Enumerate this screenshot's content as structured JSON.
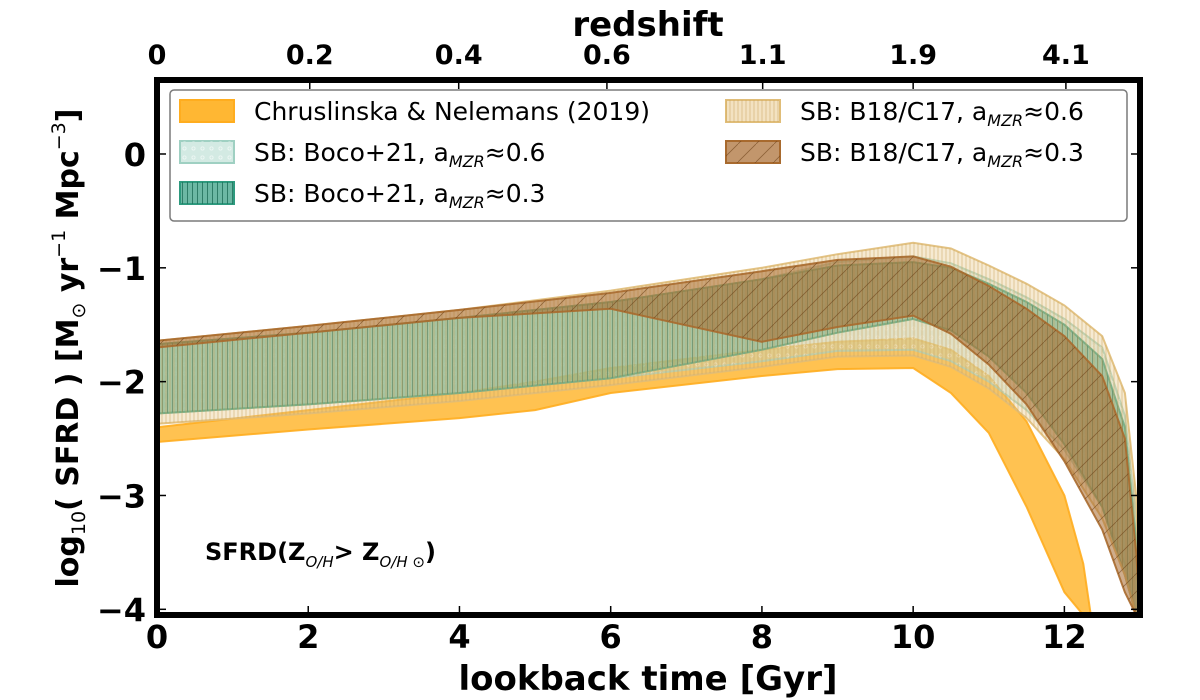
{
  "chart_data": {
    "type": "area",
    "title": "redshift",
    "xlabel": "lookback time [Gyr]",
    "ylabel": {
      "prefix": "log",
      "sub10": "10",
      "body": "( SFRD ) [M",
      "sun": "⊙",
      "yr": " yr",
      "sup1": "−1",
      "mpc": " Mpc",
      "sup3": "−3",
      "close": "]"
    },
    "xlim": [
      0,
      13
    ],
    "ylim": [
      -4.05,
      0.65
    ],
    "x_ticks": [
      0,
      2,
      4,
      6,
      8,
      10,
      12
    ],
    "x_tick_labels": [
      "0",
      "2",
      "4",
      "6",
      "8",
      "10",
      "12"
    ],
    "y_ticks": [
      0,
      -1,
      -2,
      -3,
      -4
    ],
    "y_tick_labels": [
      "0",
      "−1",
      "−2",
      "−3",
      "−4"
    ],
    "top_axis": {
      "label": "redshift",
      "ticks": [
        0,
        2.02,
        3.99,
        5.95,
        8.01,
        10.0,
        12.02
      ],
      "tick_labels": [
        "0",
        "0.2",
        "0.4",
        "0.6",
        "1.1",
        "1.9",
        "4.1"
      ]
    },
    "annotation": {
      "main": "SFRD(Z",
      "sub1": "O/H",
      "mid": "> Z",
      "sub2": "O/H ⊙",
      "end": ")"
    },
    "legend_position": "upper",
    "colors": {
      "chruslinska": "#ffb733",
      "boco06": "#b6dcd1",
      "boco03": "#2e9a7e",
      "b18_06": "#e8c98a",
      "b18_03": "#a86a2e"
    },
    "series": [
      {
        "key": "boco06",
        "name": "SB: Boco+21, a",
        "sub": "MZR",
        "approx": "≈0.6",
        "x": [
          0,
          2,
          4,
          6,
          8,
          9,
          10,
          10.5,
          11,
          11.5,
          12,
          12.5,
          12.8,
          12.95,
          13.0
        ],
        "upper": [
          -1.67,
          -1.57,
          -1.44,
          -1.3,
          -1.1,
          -0.95,
          -0.9,
          -0.96,
          -1.1,
          -1.26,
          -1.45,
          -1.7,
          -2.3,
          -3.2,
          -4.05
        ],
        "lower": [
          -2.28,
          -2.2,
          -2.1,
          -1.97,
          -1.82,
          -1.73,
          -1.72,
          -1.82,
          -2.0,
          -2.25,
          -2.6,
          -3.1,
          -3.6,
          -4.05,
          -4.05
        ]
      },
      {
        "key": "boco03",
        "name": "SB: Boco+21, a",
        "sub": "MZR",
        "approx": "≈0.3",
        "x": [
          0,
          2,
          4,
          6,
          8,
          9,
          10,
          10.5,
          11,
          11.5,
          12,
          12.5,
          12.8,
          12.95,
          13.0
        ],
        "upper": [
          -1.67,
          -1.57,
          -1.44,
          -1.3,
          -1.1,
          -0.98,
          -0.95,
          -1.0,
          -1.14,
          -1.3,
          -1.5,
          -1.8,
          -2.4,
          -3.4,
          -4.05
        ],
        "lower": [
          -2.28,
          -2.2,
          -2.1,
          -1.97,
          -1.72,
          -1.57,
          -1.45,
          -1.55,
          -1.78,
          -2.1,
          -2.55,
          -3.1,
          -3.7,
          -4.05,
          -4.05
        ]
      },
      {
        "key": "b18_06",
        "name": "SB: B18/C17, a",
        "sub": "MZR",
        "approx": "≈0.6",
        "x": [
          0,
          2,
          4,
          6,
          8,
          9,
          10,
          10.5,
          11,
          11.5,
          12,
          12.5,
          12.8,
          12.95,
          13.0
        ],
        "upper": [
          -1.64,
          -1.51,
          -1.37,
          -1.2,
          -1.0,
          -0.88,
          -0.78,
          -0.83,
          -0.98,
          -1.14,
          -1.33,
          -1.6,
          -2.1,
          -3.0,
          -4.05
        ],
        "lower": [
          -2.37,
          -2.28,
          -2.17,
          -2.03,
          -1.87,
          -1.78,
          -1.77,
          -1.87,
          -2.06,
          -2.32,
          -2.68,
          -3.2,
          -3.7,
          -4.05,
          -4.05
        ]
      },
      {
        "key": "b18_03",
        "name": "SB: B18/C17, a",
        "sub": "MZR",
        "approx": "≈0.3",
        "x": [
          0,
          2,
          4,
          6,
          8,
          9,
          10,
          10.5,
          11,
          11.5,
          12,
          12.5,
          12.8,
          12.95,
          13.0
        ],
        "upper": [
          -1.64,
          -1.51,
          -1.37,
          -1.22,
          -1.03,
          -0.93,
          -0.9,
          -0.99,
          -1.16,
          -1.36,
          -1.6,
          -1.95,
          -2.5,
          -3.5,
          -4.05
        ],
        "lower": [
          -1.7,
          -1.57,
          -1.44,
          -1.36,
          -1.65,
          -1.52,
          -1.42,
          -1.58,
          -1.85,
          -2.2,
          -2.7,
          -3.3,
          -3.85,
          -4.05,
          -4.05
        ]
      },
      {
        "key": "chruslinska",
        "name": "Chruslinska & Nelemans (2019)",
        "x": [
          0,
          2,
          4,
          5,
          6,
          8,
          9,
          10,
          10.5,
          11,
          11.5,
          12,
          12.25,
          12.35,
          12.45
        ],
        "upper": [
          -2.4,
          -2.25,
          -2.1,
          -2.0,
          -1.88,
          -1.72,
          -1.65,
          -1.62,
          -1.72,
          -1.95,
          -2.35,
          -3.0,
          -3.6,
          -4.05,
          -4.05
        ],
        "lower": [
          -2.53,
          -2.42,
          -2.32,
          -2.25,
          -2.1,
          -1.95,
          -1.89,
          -1.88,
          -2.1,
          -2.45,
          -3.1,
          -3.85,
          -4.05,
          -4.05,
          -4.05
        ]
      }
    ],
    "legend": [
      {
        "key": "chruslinska",
        "text": "Chruslinska & Nelemans (2019)"
      },
      {
        "key": "boco06",
        "text": "SB: Boco+21, a",
        "sub": "MZR",
        "approx": "≈0.6"
      },
      {
        "key": "boco03",
        "text": "SB: Boco+21, a",
        "sub": "MZR",
        "approx": "≈0.3"
      },
      {
        "key": "b18_06",
        "text": "SB: B18/C17, a",
        "sub": "MZR",
        "approx": "≈0.6"
      },
      {
        "key": "b18_03",
        "text": "SB: B18/C17, a",
        "sub": "MZR",
        "approx": "≈0.3"
      }
    ]
  }
}
